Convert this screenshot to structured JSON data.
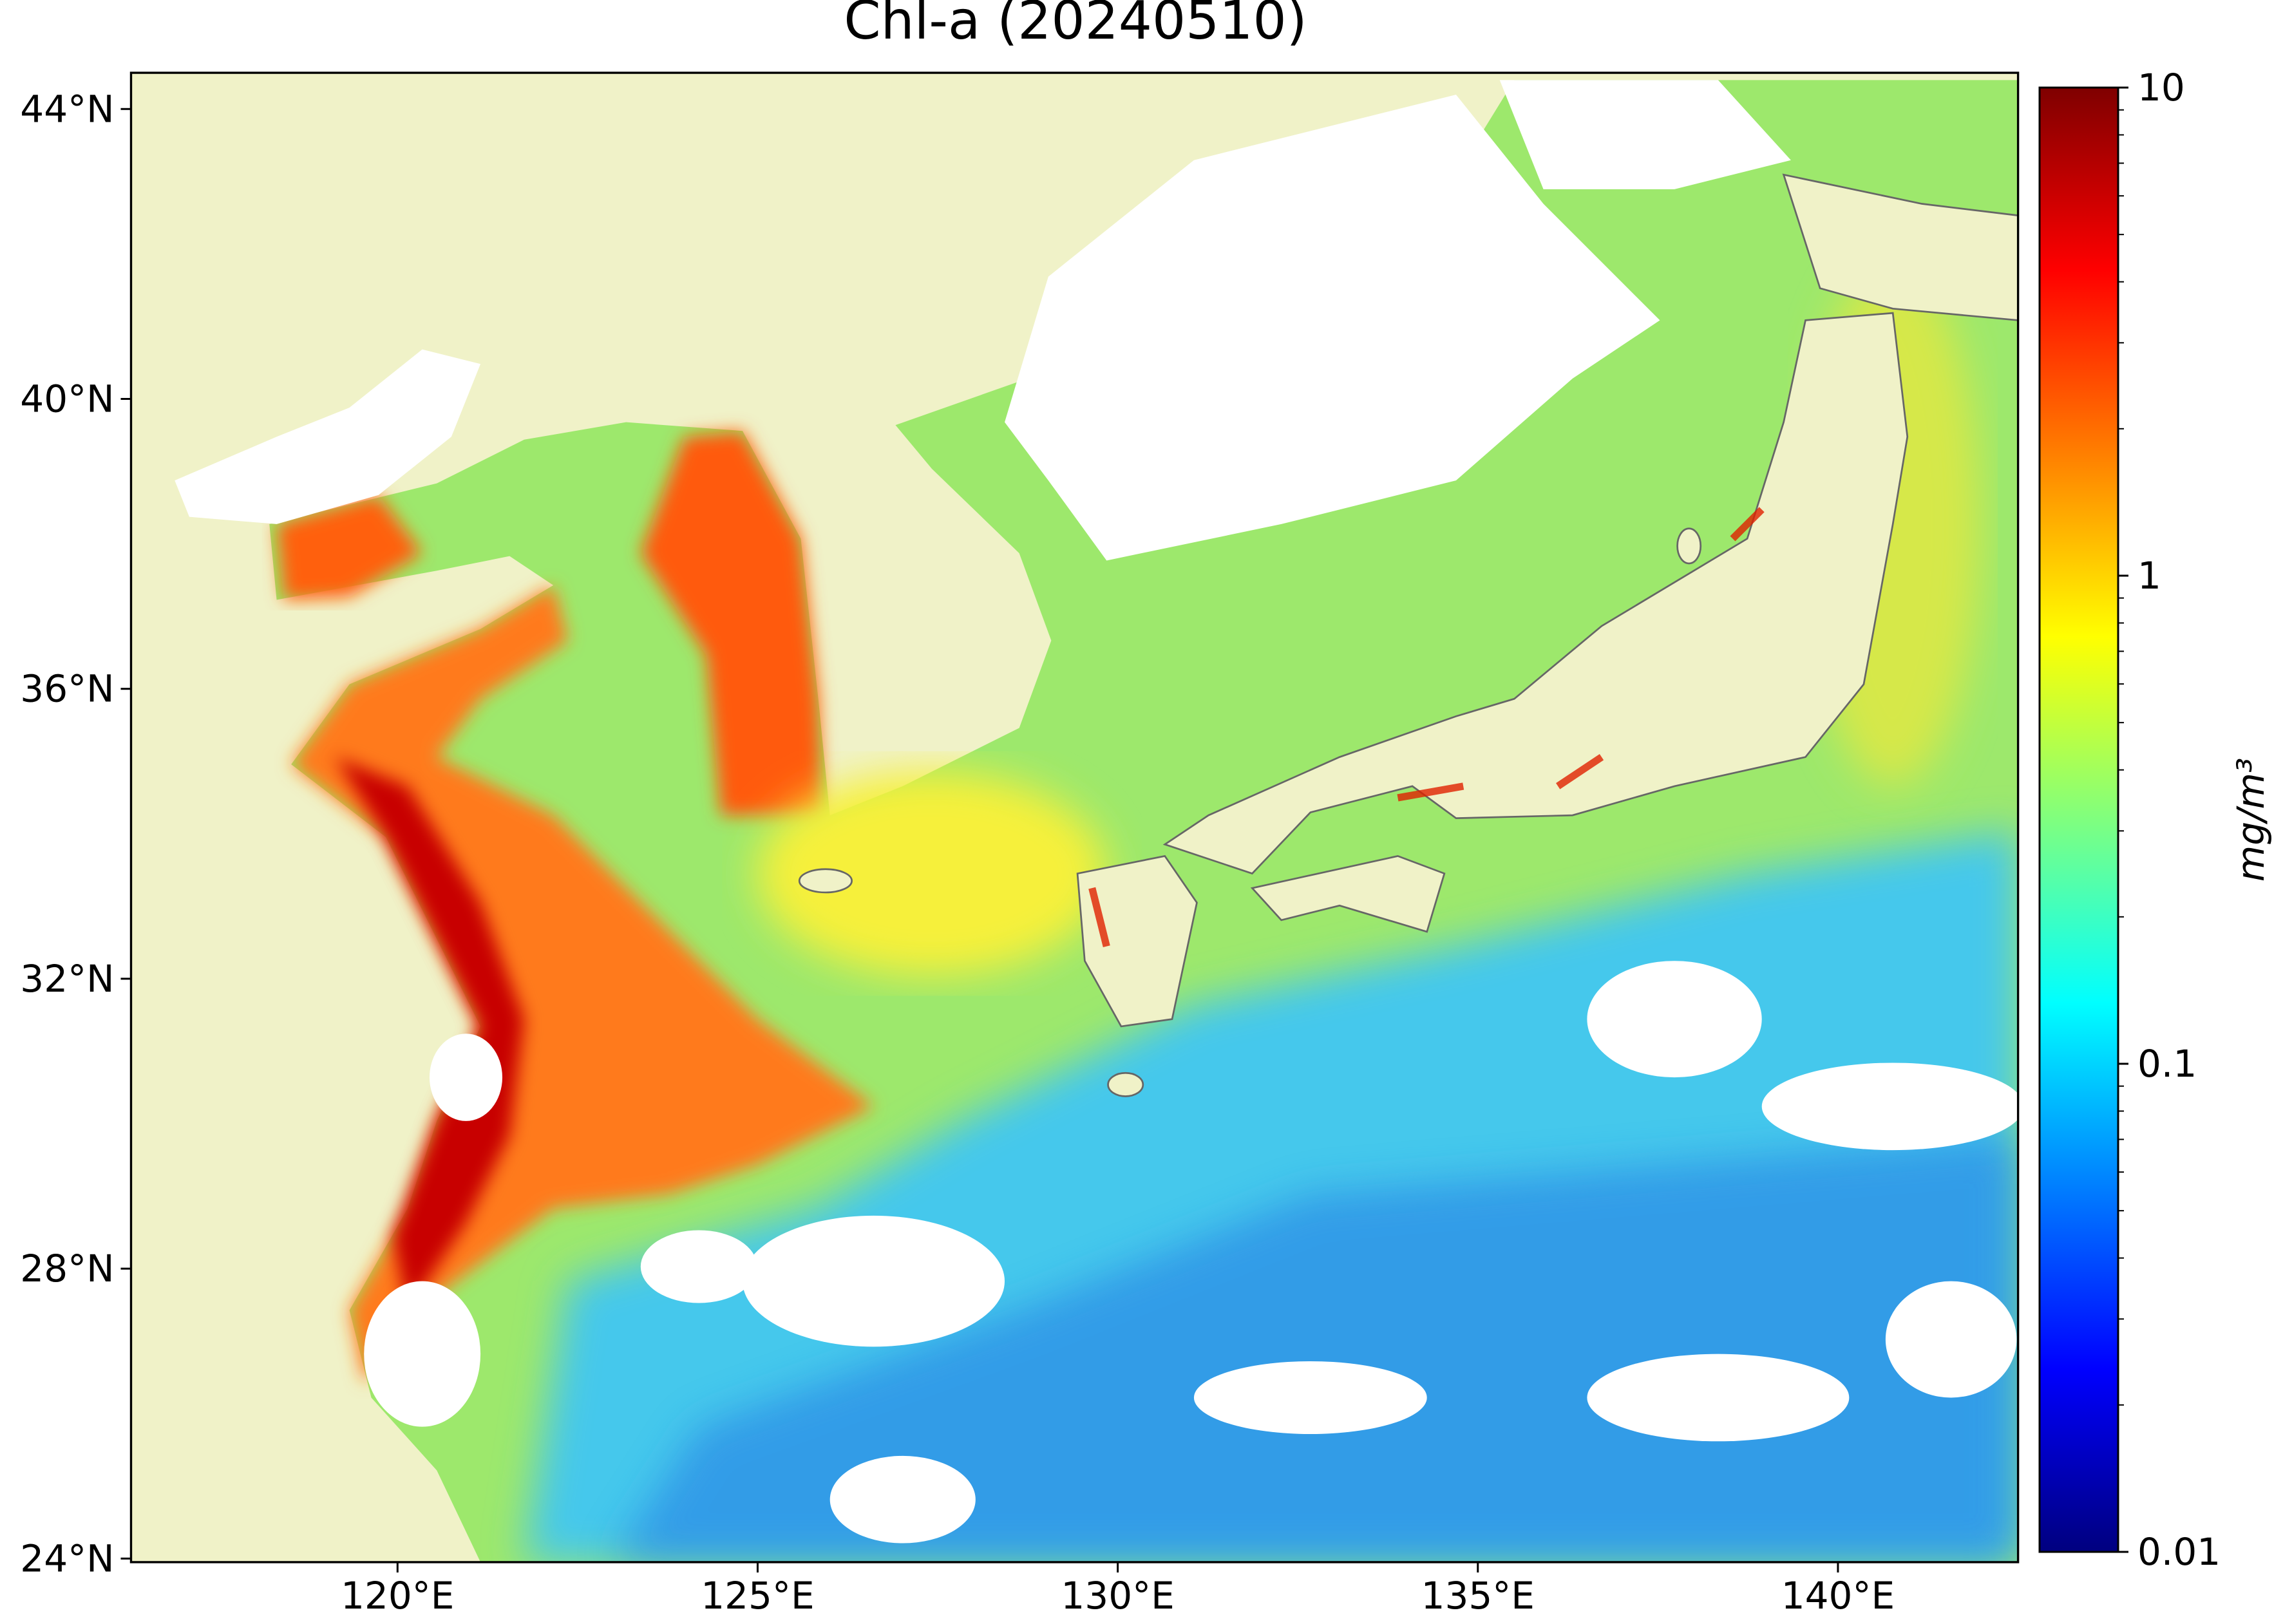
{
  "chart_data": {
    "type": "map",
    "title": "Chl-a (20240510)",
    "xlim": [
      116.3,
      142.5
    ],
    "ylim": [
      23.95,
      44.5
    ],
    "xticks": [
      {
        "value": 120,
        "label": "120°E"
      },
      {
        "value": 125,
        "label": "125°E"
      },
      {
        "value": 130,
        "label": "130°E"
      },
      {
        "value": 135,
        "label": "135°E"
      },
      {
        "value": 140,
        "label": "140°E"
      }
    ],
    "yticks": [
      {
        "value": 24,
        "label": "24°N"
      },
      {
        "value": 28,
        "label": "28°N"
      },
      {
        "value": 32,
        "label": "32°N"
      },
      {
        "value": 36,
        "label": "36°N"
      },
      {
        "value": 40,
        "label": "40°N"
      },
      {
        "value": 44,
        "label": "44°N"
      }
    ],
    "colorbar": {
      "label": "mg/m³",
      "lim": [
        0.01,
        10
      ],
      "log_scale": true,
      "ticks": [
        0.01,
        0.1,
        1,
        10
      ],
      "minor_ticks": [
        0.02,
        0.03,
        0.04,
        0.05,
        0.06,
        0.07,
        0.08,
        0.09,
        0.2,
        0.3,
        0.4,
        0.5,
        0.6,
        0.7,
        0.8,
        0.9,
        2,
        3,
        4,
        5,
        6,
        7,
        8,
        9
      ],
      "colormap": [
        "#00007f",
        "#0000ff",
        "#007fff",
        "#00ffff",
        "#7fff7f",
        "#ffff00",
        "#ff7f00",
        "#ff0000",
        "#7f0000"
      ]
    }
  }
}
